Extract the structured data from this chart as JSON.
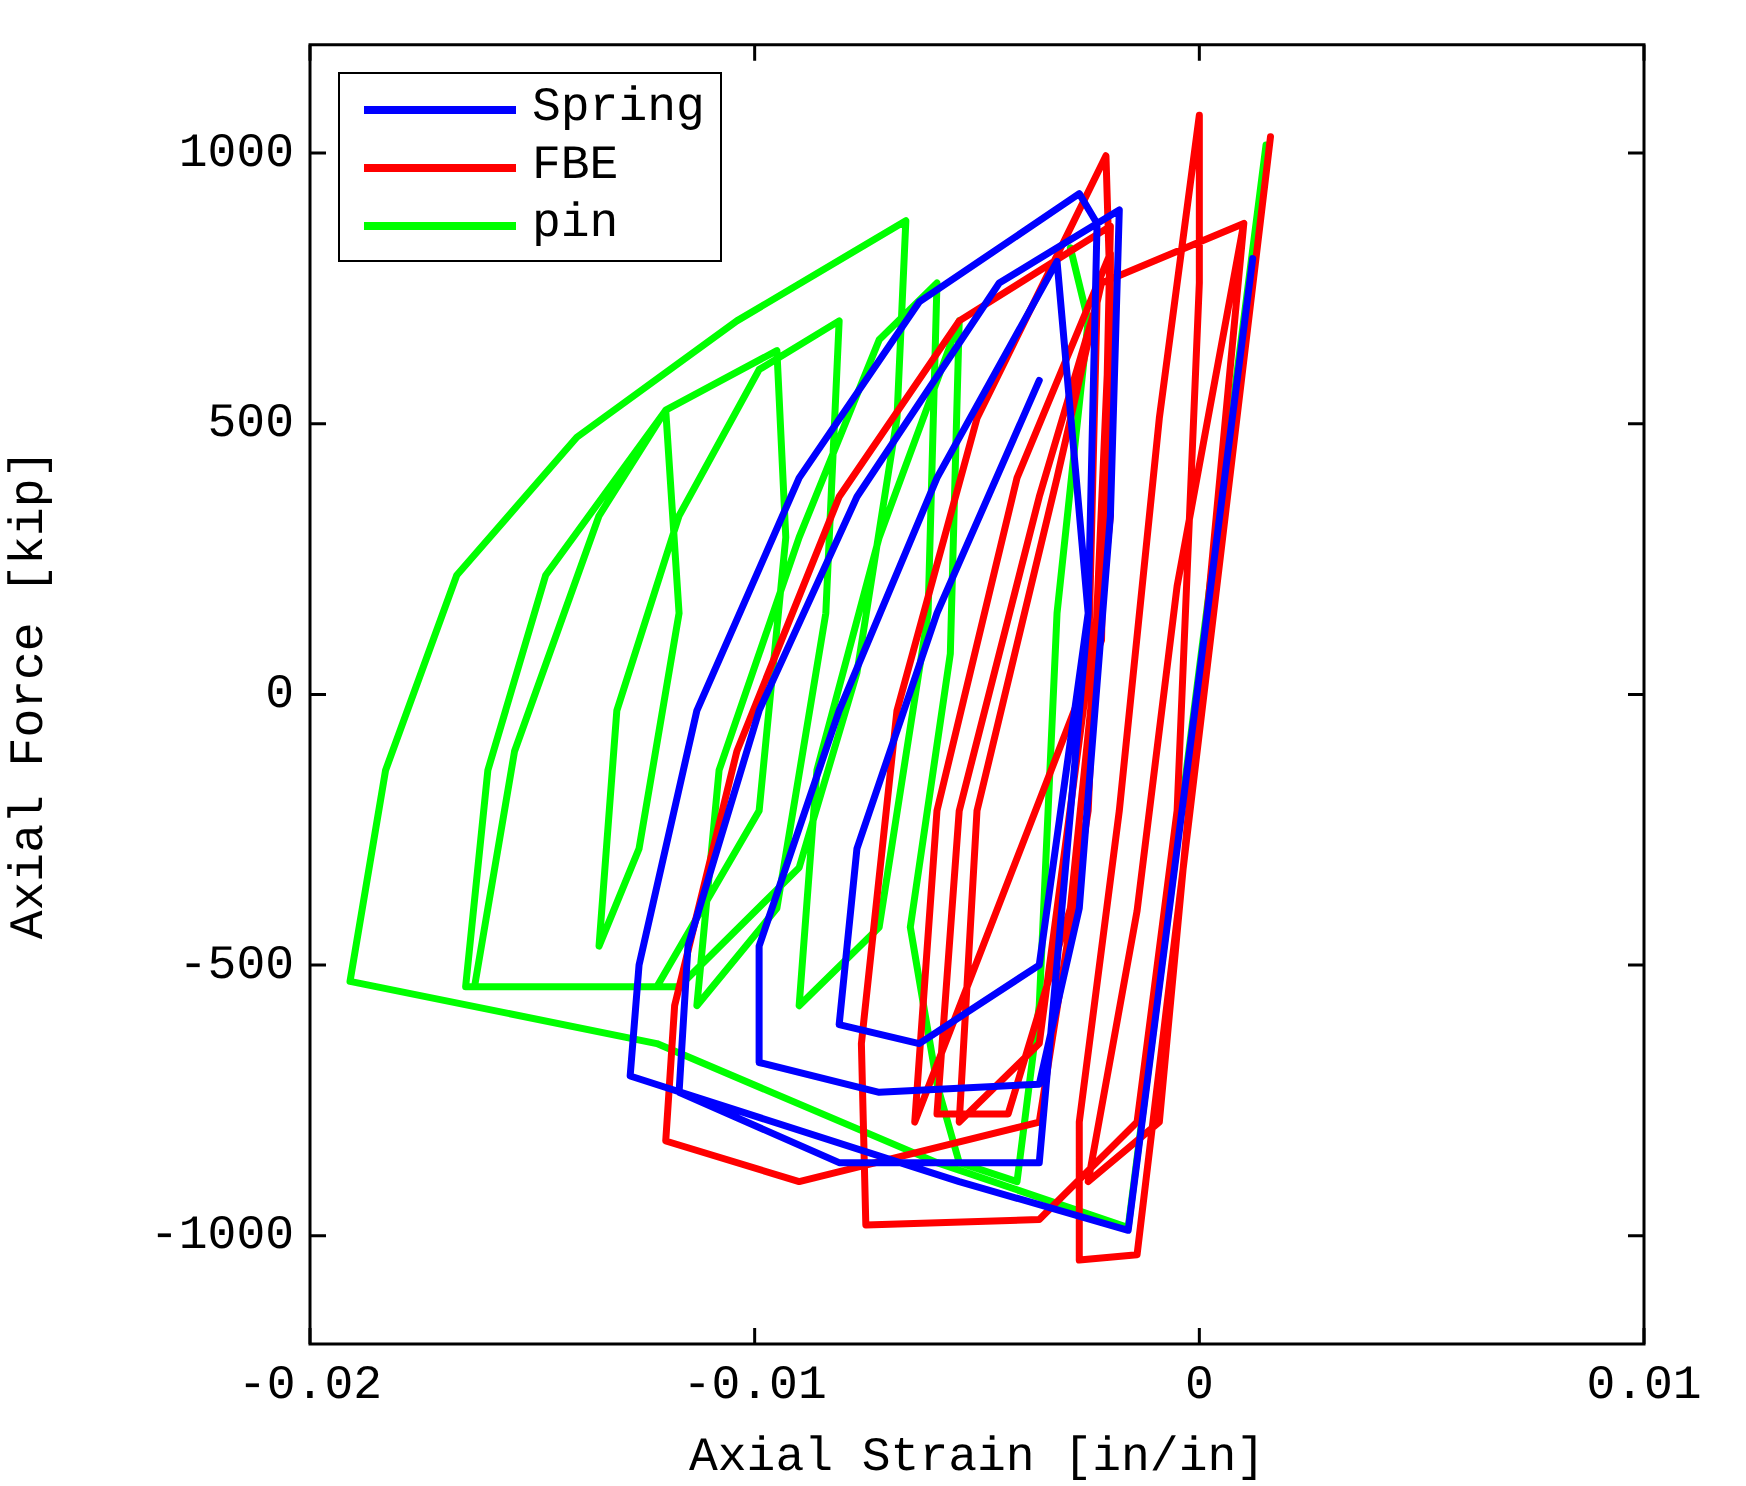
{
  "chart_data": {
    "type": "line",
    "xlabel": "Axial Strain [in/in]",
    "ylabel": "Axial Force [kip]",
    "xlim": [
      -0.02,
      0.01
    ],
    "ylim": [
      -1200,
      1200
    ],
    "xticks": [
      -0.02,
      -0.01,
      0,
      0.01
    ],
    "yticks": [
      -1000,
      -500,
      0,
      500,
      1000
    ],
    "grid": false,
    "legend": "top left",
    "marker": "none",
    "line_style": "solid",
    "series": [
      {
        "name": "Spring",
        "color": "#0000ff",
        "x": [
          0.0012,
          -0.0016,
          -0.0054,
          -0.0128,
          -0.0126,
          -0.0113,
          -0.009,
          -0.0063,
          -0.0027,
          -0.0023,
          -0.0025,
          -0.0036,
          -0.0081,
          -0.0117,
          -0.0115,
          -0.0099,
          -0.0077,
          -0.0045,
          -0.0018,
          -0.002,
          -0.0027,
          -0.0036,
          -0.0072,
          -0.0099,
          -0.0099,
          -0.0081,
          -0.0059,
          -0.0032,
          -0.0025,
          -0.0036,
          -0.0063,
          -0.0081,
          -0.0077,
          -0.0059,
          -0.0036
        ],
        "values": [
          805,
          -990,
          -900,
          -705,
          -500,
          -30,
          400,
          725,
          925,
          870,
          150,
          -865,
          -865,
          -735,
          -465,
          -30,
          365,
          760,
          895,
          330,
          -395,
          -720,
          -735,
          -680,
          -465,
          -30,
          400,
          800,
          150,
          -500,
          -645,
          -610,
          -285,
          150,
          580
        ]
      },
      {
        "name": "FBE",
        "color": "#ff0000",
        "x": [
          0.0016,
          -0.0014,
          -0.0027,
          -0.0027,
          -0.0018,
          -0.0009,
          0,
          0,
          -0.0005,
          -0.0014,
          -0.0036,
          -0.0075,
          -0.0076,
          -0.0068,
          -0.005,
          -0.0021,
          -0.002,
          -0.0025,
          -0.0036,
          -0.009,
          -0.012,
          -0.0118,
          -0.0104,
          -0.0081,
          -0.0054,
          -0.002,
          -0.0022,
          -0.0064,
          -0.0059,
          -0.0041,
          -0.002,
          -0.002,
          -0.0029,
          -0.0043,
          -0.0059,
          -0.0054,
          -0.0036,
          -0.0023,
          -0.0025,
          -0.0036,
          -0.0054,
          -0.005,
          -0.0032,
          -0.0022,
          0.001,
          -0.0009,
          -0.0025,
          -0.0014,
          -0.0005,
          0.001
        ],
        "values": [
          1030,
          -1035,
          -1045,
          -790,
          -215,
          510,
          1070,
          760,
          -215,
          -790,
          -970,
          -980,
          -645,
          -30,
          510,
          995,
          725,
          -215,
          -790,
          -900,
          -825,
          -575,
          -105,
          365,
          690,
          865,
          100,
          -790,
          -215,
          400,
          815,
          330,
          -395,
          -775,
          -775,
          -215,
          365,
          725,
          40,
          -645,
          -790,
          -215,
          400,
          760,
          870,
          -790,
          -900,
          -400,
          200,
          870
        ]
      },
      {
        "name": "pin",
        "color": "#00ff00",
        "x": [
          0.0015,
          -0.0016,
          -0.0059,
          -0.0122,
          -0.0191,
          -0.0183,
          -0.0167,
          -0.014,
          -0.0104,
          -0.0066,
          -0.0068,
          -0.0077,
          -0.009,
          -0.0117,
          -0.0165,
          -0.016,
          -0.0147,
          -0.012,
          -0.0095,
          -0.0093,
          -0.0099,
          -0.0122,
          -0.0163,
          -0.0154,
          -0.0135,
          -0.012,
          -0.0117,
          -0.0126,
          -0.0135,
          -0.0131,
          -0.0117,
          -0.0099,
          -0.0081,
          -0.0084,
          -0.0095,
          -0.0113,
          -0.0108,
          -0.009,
          -0.0072,
          -0.0059,
          -0.0061,
          -0.0072,
          -0.009,
          -0.0086,
          -0.0072,
          -0.0054,
          -0.0056,
          -0.0065,
          -0.0059,
          -0.0054,
          -0.0041,
          -0.0036,
          -0.0032,
          -0.0025,
          -0.0029
        ],
        "values": [
          1015,
          -985,
          -865,
          -645,
          -530,
          -140,
          220,
          475,
          690,
          875,
          510,
          40,
          -320,
          -540,
          -540,
          -140,
          220,
          525,
          635,
          290,
          -215,
          -540,
          -540,
          -105,
          330,
          525,
          150,
          -285,
          -465,
          -30,
          330,
          600,
          690,
          150,
          -395,
          -575,
          -140,
          290,
          655,
          760,
          150,
          -430,
          -575,
          -140,
          290,
          690,
          75,
          -430,
          -720,
          -865,
          -900,
          -575,
          150,
          690,
          825
        ]
      }
    ]
  }
}
